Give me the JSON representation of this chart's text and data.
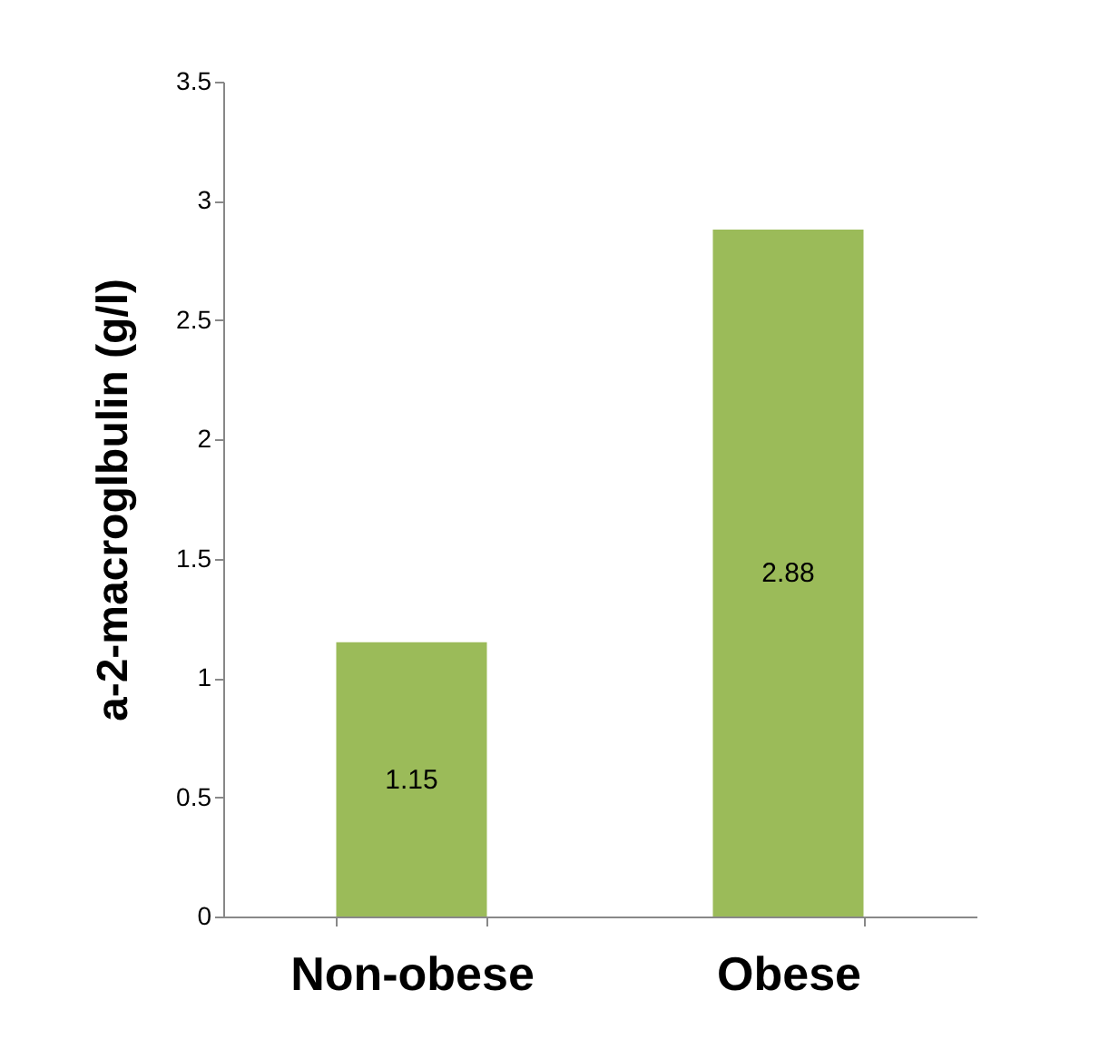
{
  "chart_data": {
    "type": "bar",
    "ylabel": "a-2-macroglbulin (g/l)",
    "categories": [
      "Non-obese",
      "Obese"
    ],
    "values": [
      1.15,
      2.88
    ],
    "color": "#9bbb59",
    "ylim": [
      0,
      3.5
    ],
    "yticks": [
      0,
      0.5,
      1,
      1.5,
      2,
      2.5,
      3,
      3.5
    ],
    "grid": false,
    "data_labels": true
  }
}
